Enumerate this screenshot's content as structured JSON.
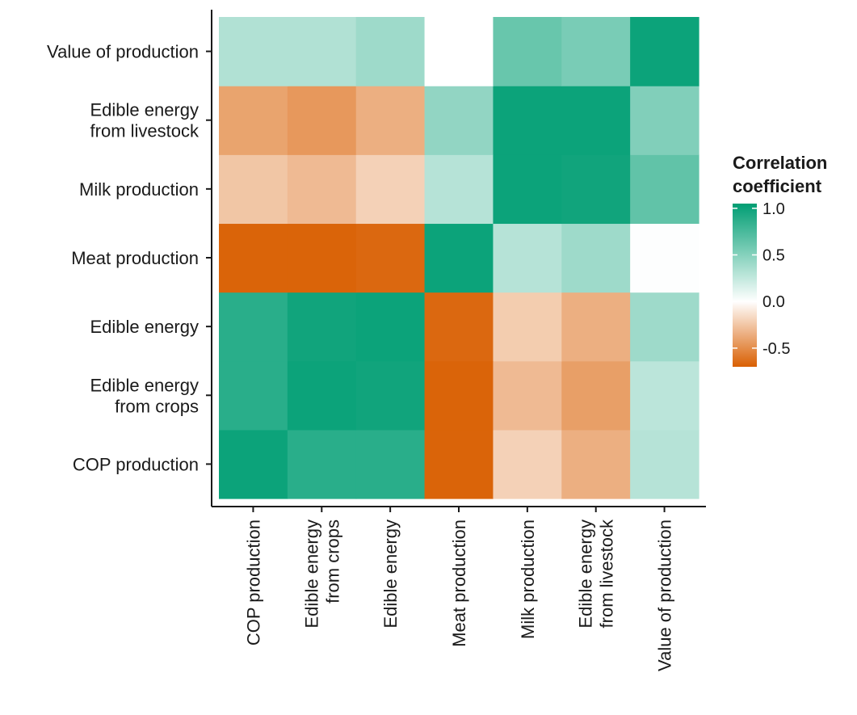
{
  "chart_data": {
    "type": "heatmap",
    "x_categories": [
      [
        "COP production"
      ],
      [
        "Edible energy",
        "from crops"
      ],
      [
        "Edible energy"
      ],
      [
        "Meat production"
      ],
      [
        "Milk production"
      ],
      [
        "Edible energy",
        "from livestock"
      ],
      [
        "Value of production"
      ]
    ],
    "y_categories": [
      [
        "COP production"
      ],
      [
        "Edible energy",
        "from crops"
      ],
      [
        "Edible energy"
      ],
      [
        "Meat production"
      ],
      [
        "Milk production"
      ],
      [
        "Edible energy",
        "from livestock"
      ],
      [
        "Value of production"
      ]
    ],
    "values": [
      [
        1.0,
        0.88,
        0.88,
        -0.68,
        -0.2,
        -0.35,
        0.3
      ],
      [
        0.88,
        1.0,
        0.98,
        -0.68,
        -0.3,
        -0.42,
        0.28
      ],
      [
        0.88,
        0.98,
        1.0,
        -0.66,
        -0.22,
        -0.35,
        0.4
      ],
      [
        -0.68,
        -0.68,
        -0.66,
        1.0,
        0.3,
        0.4,
        0.01
      ],
      [
        -0.25,
        -0.3,
        -0.2,
        0.3,
        1.0,
        0.98,
        0.65
      ],
      [
        -0.4,
        -0.45,
        -0.35,
        0.45,
        1.0,
        1.0,
        0.52
      ],
      [
        0.32,
        0.32,
        0.4,
        0.0,
        0.62,
        0.55,
        1.0
      ]
    ],
    "scale": {
      "min": -0.7,
      "max": 1.05,
      "low_color": "#d95f02",
      "mid_color": "#ffffff",
      "high_color": "#009e73"
    },
    "legend": {
      "title": [
        "Correlation",
        "coefficient"
      ],
      "ticks": [
        1.0,
        0.5,
        0.0,
        -0.5
      ],
      "tick_labels": [
        "1.0",
        "0.5",
        "0.0",
        "-0.5"
      ],
      "position": "right"
    },
    "xlabel": "",
    "ylabel": "",
    "grid": false
  }
}
